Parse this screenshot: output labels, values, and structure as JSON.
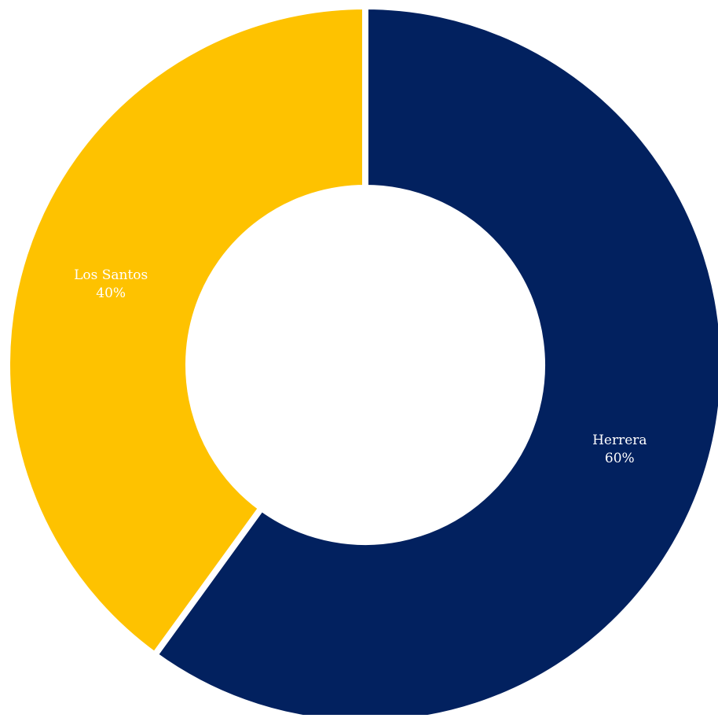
{
  "chart_data": {
    "type": "pie",
    "variant": "donut",
    "categories": [
      "Herrera",
      "Los Santos"
    ],
    "values": [
      60,
      40
    ],
    "value_labels": [
      "60%",
      "40%"
    ],
    "colors": [
      "#02215F",
      "#FEC200"
    ],
    "start": "top",
    "direction": "clockwise",
    "legend": "none",
    "title": ""
  }
}
